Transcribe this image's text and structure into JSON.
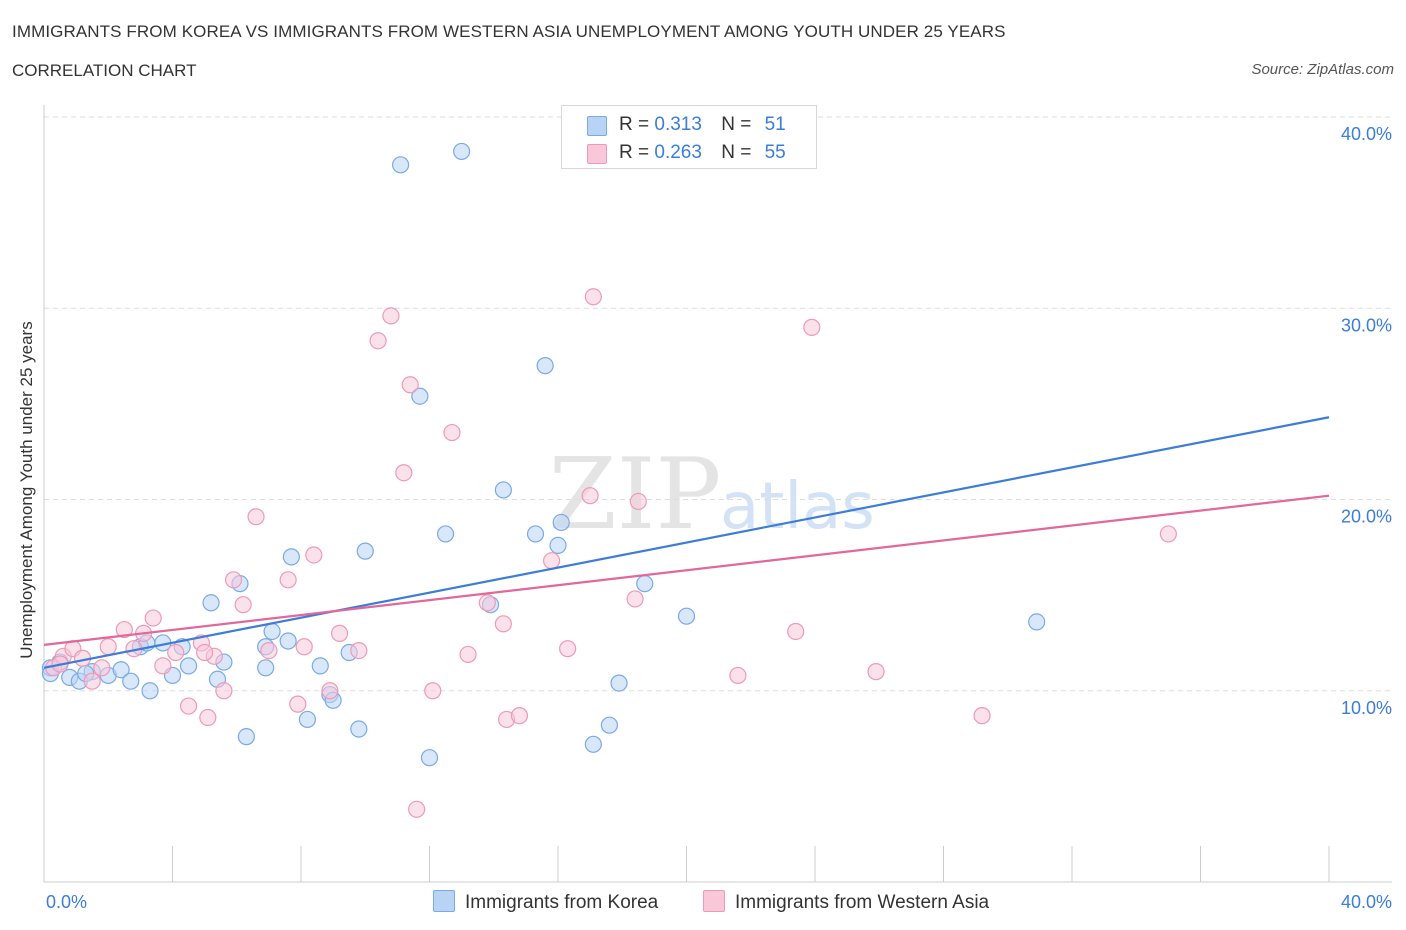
{
  "title": "IMMIGRANTS FROM KOREA VS IMMIGRANTS FROM WESTERN ASIA UNEMPLOYMENT AMONG YOUTH UNDER 25 YEARS",
  "subtitle": "CORRELATION CHART",
  "source": "Source: ZipAtlas.com",
  "watermark": {
    "zip": "ZIP",
    "atlas": "atlas"
  },
  "colors": {
    "korea_fill": "#b9d3f5",
    "korea_stroke": "#7aaae6",
    "korea_line": "#3b7dd8",
    "wasia_fill": "#f8c8d8",
    "wasia_stroke": "#ee9ab6",
    "wasia_line": "#e2679a",
    "axis_text": "#3b7dd8",
    "grid": "#dddddd"
  },
  "legend": {
    "rows": [
      {
        "r_label": "R = ",
        "r_value": "0.313",
        "n_label": "N = ",
        "n_value": "51"
      },
      {
        "r_label": "R = ",
        "r_value": "0.263",
        "n_label": "N = ",
        "n_value": "55"
      }
    ]
  },
  "bottom_legend": {
    "korea": "Immigrants from Korea",
    "wasia": "Immigrants from Western Asia"
  },
  "chart_data": {
    "type": "scatter",
    "title": "IMMIGRANTS FROM KOREA VS IMMIGRANTS FROM WESTERN ASIA UNEMPLOYMENT AMONG YOUTH UNDER 25 YEARS",
    "xlabel": "",
    "ylabel": "Unemployment Among Youth under 25 years",
    "xlim": [
      0,
      40
    ],
    "ylim": [
      0,
      40
    ],
    "x_tick_labels": [
      "0.0%",
      "40.0%"
    ],
    "y_ticks": [
      10,
      20,
      30,
      40
    ],
    "y_tick_labels": [
      "10.0%",
      "20.0%",
      "30.0%",
      "40.0%"
    ],
    "grid": true,
    "series": [
      {
        "name": "Immigrants from Korea",
        "R": 0.313,
        "N": 51,
        "trend": {
          "x": [
            0,
            40
          ],
          "y": [
            11.2,
            24.3
          ]
        },
        "points": [
          [
            0.2,
            11.2
          ],
          [
            0.5,
            11.5
          ],
          [
            0.8,
            10.7
          ],
          [
            1.1,
            10.5
          ],
          [
            1.5,
            11.0
          ],
          [
            2.0,
            10.8
          ],
          [
            2.4,
            11.1
          ],
          [
            2.7,
            10.5
          ],
          [
            3.0,
            12.3
          ],
          [
            3.3,
            10.0
          ],
          [
            3.7,
            12.5
          ],
          [
            4.0,
            10.8
          ],
          [
            4.5,
            11.3
          ],
          [
            5.2,
            14.6
          ],
          [
            5.6,
            11.5
          ],
          [
            5.4,
            10.6
          ],
          [
            6.1,
            15.6
          ],
          [
            6.3,
            7.6
          ],
          [
            6.9,
            12.3
          ],
          [
            7.1,
            13.1
          ],
          [
            7.7,
            17.0
          ],
          [
            8.2,
            8.5
          ],
          [
            8.6,
            11.3
          ],
          [
            8.9,
            9.8
          ],
          [
            9.5,
            12.0
          ],
          [
            10.0,
            17.3
          ],
          [
            11.1,
            37.5
          ],
          [
            11.7,
            25.4
          ],
          [
            12.5,
            18.2
          ],
          [
            13.0,
            38.2
          ],
          [
            13.9,
            14.5
          ],
          [
            14.3,
            20.5
          ],
          [
            15.3,
            18.2
          ],
          [
            15.6,
            27.0
          ],
          [
            16.0,
            17.6
          ],
          [
            16.1,
            18.8
          ],
          [
            17.1,
            7.2
          ],
          [
            17.6,
            8.2
          ],
          [
            18.7,
            15.6
          ],
          [
            20.0,
            13.9
          ],
          [
            30.9,
            13.6
          ],
          [
            0.2,
            10.9
          ],
          [
            1.3,
            10.9
          ],
          [
            4.3,
            12.3
          ],
          [
            7.6,
            12.6
          ],
          [
            9.0,
            9.5
          ],
          [
            12.0,
            6.5
          ],
          [
            17.9,
            10.4
          ],
          [
            6.9,
            11.2
          ],
          [
            3.2,
            12.5
          ],
          [
            9.8,
            8.0
          ]
        ]
      },
      {
        "name": "Immigrants from Western Asia",
        "R": 0.263,
        "N": 55,
        "trend": {
          "x": [
            0,
            40
          ],
          "y": [
            12.4,
            20.2
          ]
        },
        "points": [
          [
            0.3,
            11.2
          ],
          [
            0.6,
            11.8
          ],
          [
            0.9,
            12.2
          ],
          [
            1.2,
            11.7
          ],
          [
            1.5,
            10.5
          ],
          [
            2.0,
            12.3
          ],
          [
            2.5,
            13.2
          ],
          [
            2.8,
            12.2
          ],
          [
            3.1,
            13.0
          ],
          [
            3.4,
            13.8
          ],
          [
            3.7,
            11.3
          ],
          [
            4.1,
            12.0
          ],
          [
            4.5,
            9.2
          ],
          [
            4.9,
            12.5
          ],
          [
            5.1,
            8.6
          ],
          [
            5.3,
            11.8
          ],
          [
            5.6,
            10.0
          ],
          [
            5.9,
            15.8
          ],
          [
            6.2,
            14.5
          ],
          [
            6.6,
            19.1
          ],
          [
            7.0,
            12.1
          ],
          [
            7.6,
            15.8
          ],
          [
            7.9,
            9.3
          ],
          [
            8.1,
            12.3
          ],
          [
            8.4,
            17.1
          ],
          [
            8.9,
            10.0
          ],
          [
            9.2,
            13.0
          ],
          [
            9.8,
            12.1
          ],
          [
            10.4,
            28.3
          ],
          [
            10.8,
            29.6
          ],
          [
            11.2,
            21.4
          ],
          [
            11.4,
            26.0
          ],
          [
            11.6,
            3.8
          ],
          [
            12.1,
            10.0
          ],
          [
            12.7,
            23.5
          ],
          [
            13.2,
            11.9
          ],
          [
            13.8,
            14.6
          ],
          [
            14.3,
            13.5
          ],
          [
            14.4,
            8.5
          ],
          [
            14.8,
            8.7
          ],
          [
            15.8,
            16.8
          ],
          [
            16.3,
            12.2
          ],
          [
            17.0,
            20.2
          ],
          [
            17.1,
            30.6
          ],
          [
            18.4,
            14.8
          ],
          [
            18.5,
            19.9
          ],
          [
            21.6,
            10.8
          ],
          [
            23.4,
            13.1
          ],
          [
            23.9,
            29.0
          ],
          [
            25.9,
            11.0
          ],
          [
            29.2,
            8.7
          ],
          [
            35.0,
            18.2
          ],
          [
            0.5,
            11.4
          ],
          [
            1.8,
            11.2
          ],
          [
            5.0,
            12.0
          ]
        ]
      }
    ]
  }
}
